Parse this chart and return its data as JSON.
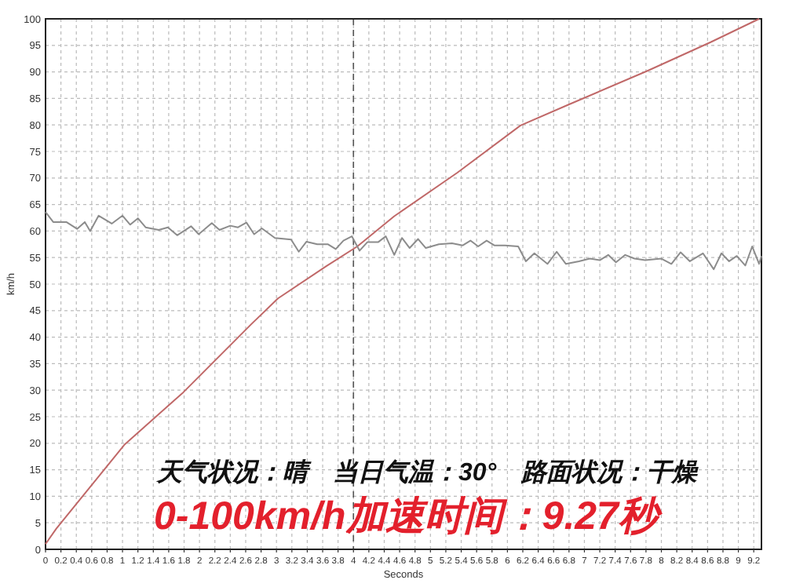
{
  "chart_data": {
    "type": "line",
    "xlabel": "Seconds",
    "ylabel": "km/h",
    "annotations": [
      "天气状况：晴　当日气温：30°　路面状况：干燥",
      "0-100km/h加速时间：9.27秒"
    ],
    "xlim": [
      0,
      9.3
    ],
    "ylim": [
      0,
      100
    ],
    "xticks": [
      0,
      0.2,
      0.4,
      0.6,
      0.8,
      1,
      1.2,
      1.4,
      1.6,
      1.8,
      2,
      2.2,
      2.4,
      2.6,
      2.8,
      3,
      3.2,
      3.4,
      3.6,
      3.8,
      4,
      4.2,
      4.4,
      4.6,
      4.8,
      5,
      5.2,
      5.4,
      5.6,
      5.8,
      6,
      6.2,
      6.4,
      6.6,
      6.8,
      7,
      7.2,
      7.4,
      7.6,
      7.8,
      8,
      8.2,
      8.4,
      8.6,
      8.8,
      9,
      9.2
    ],
    "yticks": [
      0,
      5,
      10,
      15,
      20,
      25,
      30,
      35,
      40,
      45,
      50,
      55,
      60,
      65,
      70,
      75,
      80,
      85,
      90,
      95,
      100
    ],
    "grid": true,
    "marker": "none",
    "line_style": "solid",
    "ref_lines": [
      {
        "axis": "x",
        "value": 4,
        "color": "#555555",
        "line_style": "dashed"
      }
    ],
    "series": [
      {
        "color": "#c06868",
        "x": [
          0,
          0.14,
          1.03,
          1.79,
          2.67,
          3.02,
          3.64,
          4.05,
          4.53,
          5.35,
          6.17,
          6.79,
          7.82,
          8.64,
          9.27
        ],
        "values": [
          1,
          3.9,
          19.8,
          29.6,
          42.4,
          47.3,
          53.3,
          57.1,
          62.8,
          71,
          79.9,
          83.8,
          90.2,
          95.6,
          100
        ]
      },
      {
        "color": "#8c8c8c",
        "x": [
          0,
          0.1,
          0.27,
          0.41,
          0.51,
          0.58,
          0.69,
          0.86,
          1,
          1.1,
          1.2,
          1.3,
          1.47,
          1.59,
          1.71,
          1.89,
          1.99,
          2.16,
          2.26,
          2.4,
          2.5,
          2.61,
          2.71,
          2.81,
          2.98,
          3.19,
          3.29,
          3.39,
          3.53,
          3.67,
          3.77,
          3.87,
          3.98,
          4.08,
          4.18,
          4.32,
          4.42,
          4.53,
          4.63,
          4.73,
          4.84,
          4.94,
          5.11,
          5.28,
          5.42,
          5.52,
          5.62,
          5.73,
          5.83,
          5.97,
          6.14,
          6.24,
          6.35,
          6.52,
          6.64,
          6.76,
          6.93,
          7.07,
          7.2,
          7.31,
          7.41,
          7.53,
          7.65,
          7.79,
          8,
          8.13,
          8.25,
          8.37,
          8.54,
          8.68,
          8.78,
          8.88,
          8.98,
          9.09,
          9.18,
          9.27,
          9.3
        ],
        "values": [
          63.6,
          61.7,
          61.7,
          60.4,
          61.7,
          60,
          62.9,
          61.4,
          62.9,
          61.2,
          62.4,
          60.7,
          60.2,
          60.7,
          59.2,
          60.9,
          59.4,
          61.5,
          60.2,
          61,
          60.7,
          61.6,
          59.4,
          60.5,
          58.7,
          58.4,
          56.1,
          58,
          57.5,
          57.5,
          56.6,
          58.2,
          59,
          56.3,
          57.9,
          57.9,
          59,
          55.5,
          58.7,
          56.8,
          58.5,
          56.8,
          57.5,
          57.7,
          57.3,
          58.2,
          57.1,
          58.2,
          57.3,
          57.3,
          57.1,
          54.3,
          55.8,
          53.8,
          56.1,
          53.8,
          54.3,
          54.8,
          54.5,
          55.5,
          54.1,
          55.5,
          54.8,
          54.5,
          54.8,
          53.8,
          56,
          54.3,
          55.8,
          52.8,
          55.8,
          54.3,
          55.3,
          53.5,
          57.1,
          53.8,
          55.3
        ]
      }
    ]
  }
}
